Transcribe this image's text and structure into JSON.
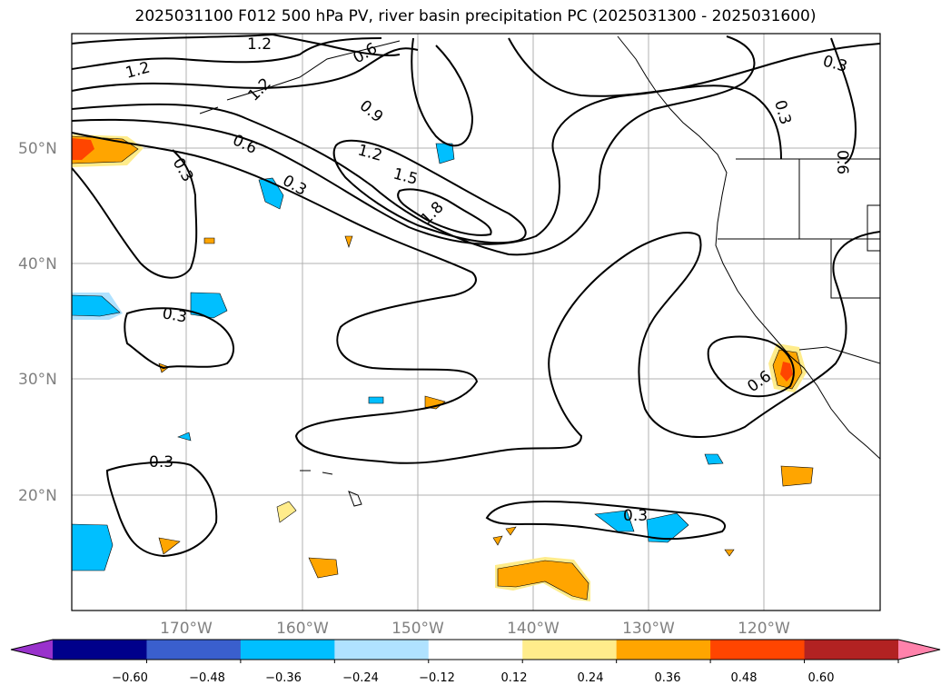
{
  "title": "2025031100 F012 500 hPa PV, river basin precipitation PC (2025031300 - 2025031600)",
  "lat_labels": [
    "50°N",
    "40°N",
    "30°N",
    "20°N"
  ],
  "lon_labels": [
    "170°W",
    "160°W",
    "150°W",
    "140°W",
    "130°W",
    "120°W"
  ],
  "contour_labels": [
    "1.2",
    "1.2",
    "0.6",
    "0.3",
    "0.9",
    "1.2",
    "0.6",
    "0.3",
    "0.3",
    "1.2",
    "1.5",
    "1.8",
    "0.3",
    "0.3",
    "0.6",
    "0.3",
    "0.3",
    "0.6"
  ],
  "colorbar": {
    "ticks": [
      "−0.60",
      "−0.48",
      "−0.36",
      "−0.24",
      "−0.12",
      "0.12",
      "0.24",
      "0.36",
      "0.48",
      "0.60"
    ],
    "colors": [
      "#9932cc",
      "#00008b",
      "#3a5fcd",
      "#00bfff",
      "#b0e2ff",
      "#ffffff",
      "#ffec8b",
      "#ffa500",
      "#ff4500",
      "#b22222",
      "#ff82ab"
    ]
  }
}
